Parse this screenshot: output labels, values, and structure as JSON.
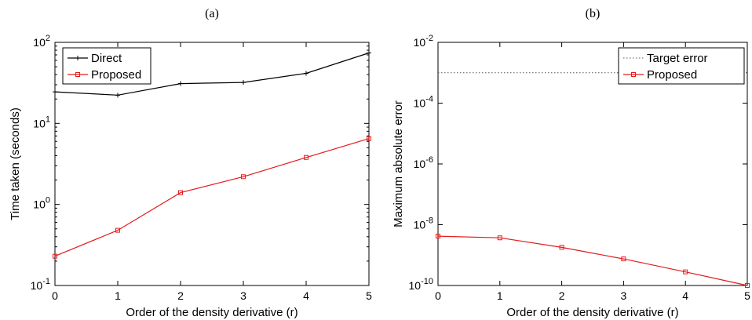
{
  "chart_data": [
    {
      "type": "line",
      "title": "(a)",
      "xlabel": "Order of the density derivative (r)",
      "ylabel": "Time taken (seconds)",
      "yscale": "log",
      "xlim": [
        0,
        5
      ],
      "ylim": [
        0.1,
        100
      ],
      "xticks": [
        "0",
        "1",
        "2",
        "3",
        "4",
        "5"
      ],
      "yticks": [
        {
          "base": "10",
          "exp": "2",
          "value": 100
        },
        {
          "base": "10",
          "exp": "1",
          "value": 10
        },
        {
          "base": "10",
          "exp": "0",
          "value": 1
        },
        {
          "base": "10",
          "exp": "-1",
          "value": 0.1
        }
      ],
      "legend_position": "top-left",
      "x": [
        0,
        1,
        2,
        3,
        4,
        5
      ],
      "series": [
        {
          "name": "Direct",
          "color": "#000000",
          "marker": "plus",
          "values": [
            24.5,
            22.3,
            31,
            32,
            41.5,
            74
          ]
        },
        {
          "name": "Proposed",
          "color": "#e41a1c",
          "marker": "square",
          "values": [
            0.23,
            0.48,
            1.4,
            2.2,
            3.8,
            6.5
          ]
        }
      ]
    },
    {
      "type": "line",
      "title": "(b)",
      "xlabel": "Order of the density derivative (r)",
      "ylabel": "Maximum absolute error",
      "yscale": "log",
      "xlim": [
        0,
        5
      ],
      "ylim": [
        1e-10,
        0.01
      ],
      "xticks": [
        "0",
        "1",
        "2",
        "3",
        "4",
        "5"
      ],
      "yticks": [
        {
          "base": "10",
          "exp": "-2",
          "value": 0.01
        },
        {
          "base": "10",
          "exp": "-4",
          "value": 0.0001
        },
        {
          "base": "10",
          "exp": "-6",
          "value": 1e-06
        },
        {
          "base": "10",
          "exp": "-8",
          "value": 1e-08
        },
        {
          "base": "10",
          "exp": "-10",
          "value": 1e-10
        }
      ],
      "legend_position": "top-right",
      "x": [
        0,
        1,
        2,
        3,
        4,
        5
      ],
      "series": [
        {
          "name": "Target error",
          "color": "#555555",
          "style": "dotted",
          "values": [
            0.001,
            0.001,
            0.001,
            0.001,
            0.001,
            0.001
          ]
        },
        {
          "name": "Proposed",
          "color": "#e41a1c",
          "marker": "square",
          "values": [
            4.2e-09,
            3.7e-09,
            1.8e-09,
            7.5e-10,
            2.8e-10,
            1e-10
          ]
        }
      ]
    }
  ]
}
